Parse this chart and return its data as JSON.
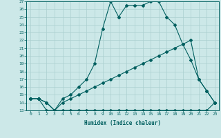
{
  "xlabel": "Humidex (Indice chaleur)",
  "x_min": 0,
  "x_max": 23,
  "y_min": 13,
  "y_max": 27,
  "background_color": "#cce8e8",
  "grid_color": "#aacfcf",
  "line_color": "#005f5f",
  "line1_x": [
    0,
    1,
    2,
    3,
    4,
    5,
    6,
    7,
    8,
    9,
    10,
    11,
    12,
    13,
    14,
    15,
    16,
    17,
    18,
    19,
    20,
    21,
    22,
    23
  ],
  "line1_y": [
    14.5,
    14.5,
    14.0,
    13.0,
    14.5,
    15.0,
    16.0,
    17.0,
    19.0,
    23.5,
    27.0,
    25.0,
    26.5,
    26.5,
    26.5,
    27.0,
    27.0,
    25.0,
    24.0,
    21.5,
    19.5,
    17.0,
    15.5,
    14.0
  ],
  "line2_x": [
    0,
    1,
    2,
    3,
    4,
    5,
    6,
    7,
    8,
    9,
    10,
    11,
    12,
    13,
    14,
    15,
    16,
    17,
    18,
    19,
    20,
    21,
    22,
    23
  ],
  "line2_y": [
    14.5,
    14.5,
    14.0,
    13.0,
    14.0,
    14.5,
    15.0,
    15.5,
    16.0,
    16.5,
    17.0,
    17.5,
    18.0,
    18.5,
    19.0,
    19.5,
    20.0,
    20.5,
    21.0,
    21.5,
    22.0,
    17.0,
    15.5,
    14.0
  ],
  "line3_x": [
    0,
    1,
    2,
    3,
    4,
    5,
    6,
    7,
    8,
    9,
    10,
    11,
    12,
    13,
    14,
    15,
    16,
    17,
    18,
    19,
    20,
    21,
    22,
    23
  ],
  "line3_y": [
    14.5,
    14.5,
    13.0,
    13.0,
    13.0,
    13.0,
    13.0,
    13.0,
    13.0,
    13.0,
    13.0,
    13.0,
    13.0,
    13.0,
    13.0,
    13.0,
    13.0,
    13.0,
    13.0,
    13.0,
    13.0,
    13.0,
    13.0,
    14.0
  ]
}
